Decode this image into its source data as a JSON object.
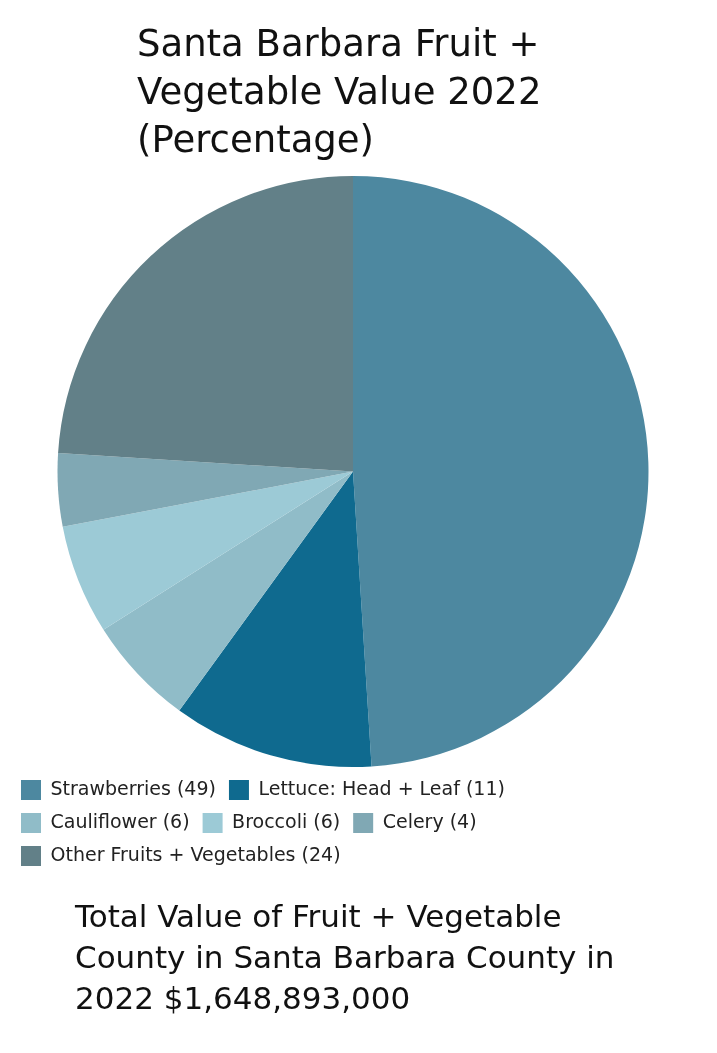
{
  "chart_data": {
    "type": "pie",
    "title": "Santa Barbara Fruit + Vegetable Value 2022 (Percentage)",
    "categories": [
      "Strawberries (49)",
      "Lettuce: Head + Leaf (11)",
      "Cauliflower (6)",
      "Broccoli (6)",
      "Celery (4)",
      "Other Fruits + Vegetables (24)"
    ],
    "values": [
      49,
      11,
      6,
      6,
      4,
      24
    ],
    "colors": [
      "#4d88a0",
      "#0f6a8f",
      "#90bcc8",
      "#9ccad6",
      "#80a8b4",
      "#628088"
    ],
    "legend": "bottom",
    "annotations": [
      "Total Value of Fruit + Vegetable County in Santa Barbara County in 2022 $1,648,893,000"
    ]
  }
}
